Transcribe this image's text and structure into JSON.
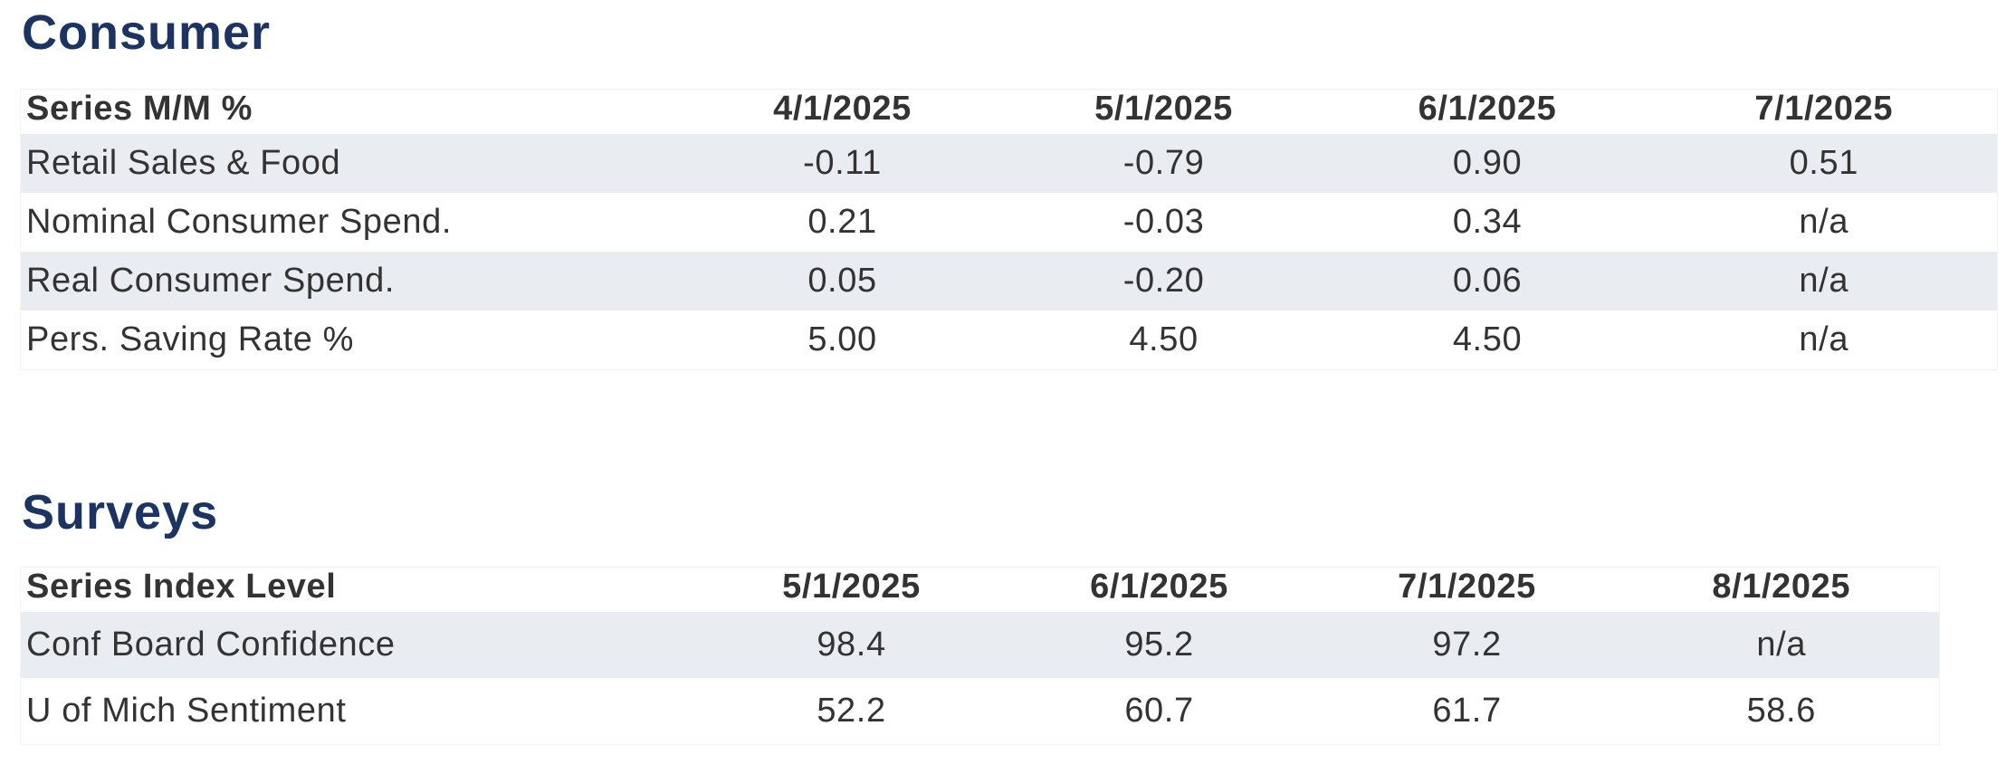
{
  "consumer": {
    "title": "Consumer",
    "header": {
      "series": "Series M/M %",
      "dates": [
        "4/1/2025",
        "5/1/2025",
        "6/1/2025",
        "7/1/2025"
      ]
    },
    "rows": [
      {
        "name": "Retail Sales & Food",
        "values": [
          "-0.11",
          "-0.79",
          "0.90",
          "0.51"
        ]
      },
      {
        "name": "Nominal Consumer Spend.",
        "values": [
          "0.21",
          "-0.03",
          "0.34",
          "n/a"
        ]
      },
      {
        "name": "Real Consumer Spend.",
        "values": [
          "0.05",
          "-0.20",
          "0.06",
          "n/a"
        ]
      },
      {
        "name": "Pers. Saving Rate %",
        "values": [
          "5.00",
          "4.50",
          "4.50",
          "n/a"
        ]
      }
    ]
  },
  "surveys": {
    "title": "Surveys",
    "header": {
      "series": "Series Index Level",
      "dates": [
        "5/1/2025",
        "6/1/2025",
        "7/1/2025",
        "8/1/2025"
      ]
    },
    "rows": [
      {
        "name": "Conf Board Confidence",
        "values": [
          "98.4",
          "95.2",
          "97.2",
          "n/a"
        ]
      },
      {
        "name": "U of Mich Sentiment",
        "values": [
          "52.2",
          "60.7",
          "61.7",
          "58.6"
        ]
      }
    ]
  },
  "colors": {
    "title": "#1b3461",
    "text": "#333333",
    "row_shade": "#e9ecf0"
  }
}
